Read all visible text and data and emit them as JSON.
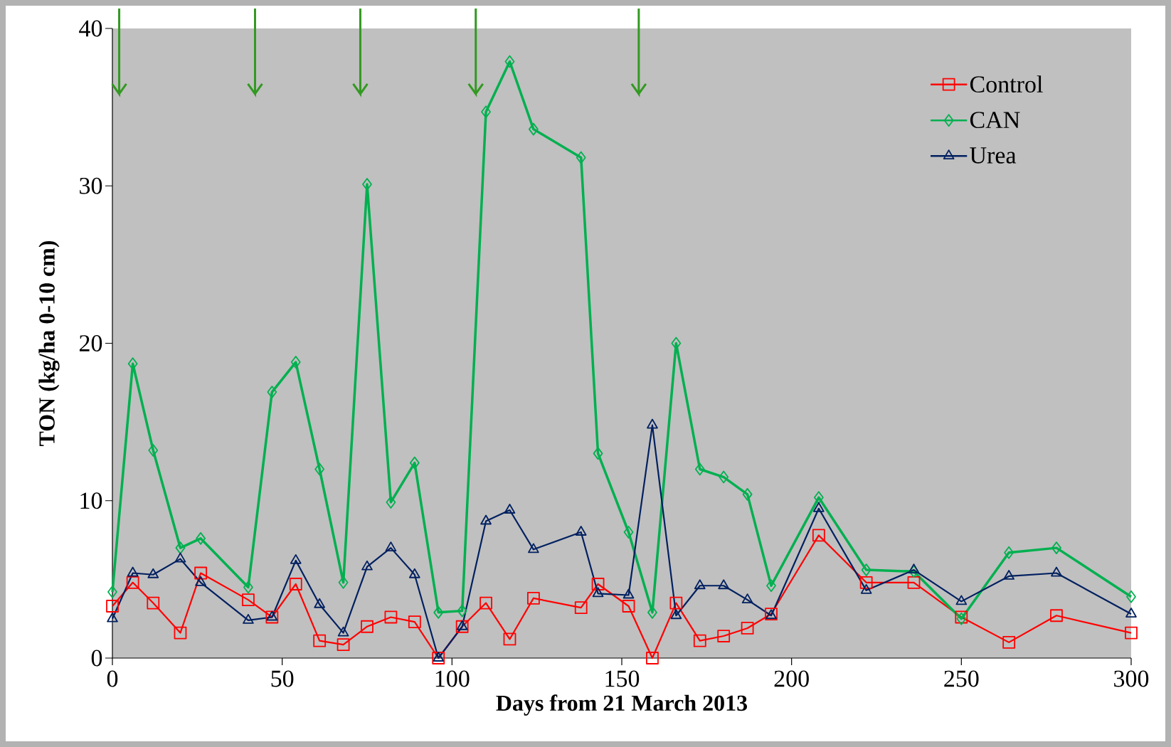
{
  "chart_data": {
    "type": "line",
    "xlabel": "Days from 21 March 2013",
    "ylabel": "TON (kg/ha 0-10 cm)",
    "x": [
      0,
      6,
      12,
      20,
      26,
      40,
      47,
      54,
      61,
      68,
      75,
      82,
      89,
      96,
      103,
      110,
      117,
      124,
      138,
      143,
      152,
      159,
      166,
      173,
      180,
      187,
      194,
      208,
      222,
      236,
      250,
      264,
      278,
      300
    ],
    "series": [
      {
        "name": "Control",
        "color": "#ff0000",
        "marker": "square",
        "values": [
          3.3,
          4.8,
          3.5,
          1.6,
          5.4,
          3.7,
          2.6,
          4.7,
          1.1,
          0.85,
          2.0,
          2.6,
          2.3,
          0,
          2.0,
          3.5,
          1.2,
          3.8,
          3.2,
          4.7,
          3.3,
          0,
          3.5,
          1.1,
          1.4,
          1.9,
          2.8,
          7.8,
          4.8,
          4.8,
          2.6,
          1.0,
          2.7,
          1.6
        ]
      },
      {
        "name": "CAN",
        "color": "#00b050",
        "marker": "diamond",
        "values": [
          4.2,
          18.7,
          13.2,
          7.0,
          7.6,
          4.5,
          16.9,
          18.8,
          12.0,
          4.8,
          30.1,
          9.9,
          12.4,
          2.9,
          3.0,
          34.7,
          37.9,
          33.6,
          31.8,
          13.0,
          8.0,
          2.9,
          20.0,
          12.0,
          11.5,
          10.4,
          4.6,
          10.2,
          5.6,
          5.5,
          2.5,
          6.7,
          7.0,
          3.9
        ]
      },
      {
        "name": "Urea",
        "color": "#002060",
        "marker": "triangle",
        "values": [
          2.5,
          5.4,
          5.3,
          6.3,
          4.8,
          2.4,
          2.6,
          6.2,
          3.4,
          1.6,
          5.8,
          7.0,
          5.3,
          0,
          2.0,
          8.7,
          9.4,
          6.9,
          8.0,
          4.1,
          4.0,
          14.8,
          2.7,
          4.6,
          4.6,
          3.7,
          2.7,
          9.5,
          4.3,
          5.6,
          3.6,
          5.2,
          5.4,
          2.8
        ]
      }
    ],
    "xlim": [
      0,
      300
    ],
    "xticks": [
      0,
      50,
      100,
      150,
      200,
      250,
      300
    ],
    "ylim": [
      0,
      40
    ],
    "yticks": [
      0,
      10,
      20,
      30,
      40
    ],
    "ref_lines": [
      {
        "axis": "x",
        "value": 2,
        "color": "#339922"
      },
      {
        "axis": "x",
        "value": 42,
        "color": "#339922"
      },
      {
        "axis": "x",
        "value": 73,
        "color": "#339922"
      },
      {
        "axis": "x",
        "value": 107,
        "color": "#339922"
      },
      {
        "axis": "x",
        "value": 155,
        "color": "#339922"
      }
    ],
    "grid": false,
    "legend": "top right",
    "line_style": "solid"
  }
}
